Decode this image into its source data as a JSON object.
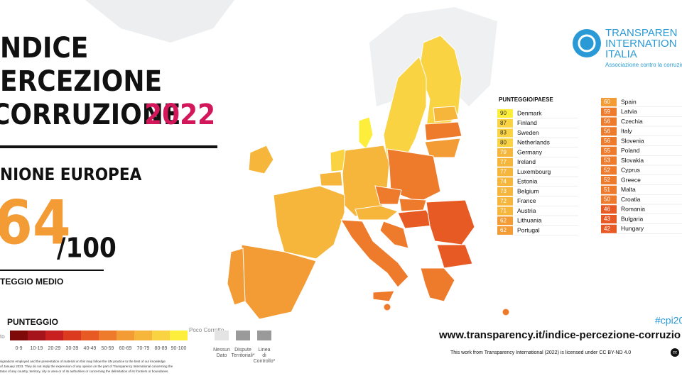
{
  "header": {
    "title_lines": [
      "NDICE",
      "ERCEZIONE",
      "CORRUZIONE"
    ],
    "year": "2022",
    "region": "NIONE EUROPEA",
    "score": "64",
    "max": "/100",
    "score_label": "TEGGIO MEDIO"
  },
  "logo": {
    "line1": "TRANSPAREN",
    "line2": "INTERNATION",
    "line3": "ITALIA",
    "tagline": "Associazione contro la corruzion"
  },
  "legend": {
    "title": "PUNTEGGIO",
    "low": "to",
    "high": "Poco Corrotto",
    "bins": [
      {
        "label": "0-9",
        "color": "#7f0a0a"
      },
      {
        "label": "10-19",
        "color": "#a5141a"
      },
      {
        "label": "20-29",
        "color": "#c82020"
      },
      {
        "label": "30-39",
        "color": "#dc3a1e"
      },
      {
        "label": "40-49",
        "color": "#e85a24"
      },
      {
        "label": "50-59",
        "color": "#ee7a2c"
      },
      {
        "label": "60-69",
        "color": "#f39b35"
      },
      {
        "label": "70-79",
        "color": "#f6b63c"
      },
      {
        "label": "80-89",
        "color": "#f9d342"
      },
      {
        "label": "90-100",
        "color": "#fcee3a"
      }
    ],
    "extras": [
      "Nessun Dato",
      "Dispute Territoriali*",
      "Linea di Controllo*"
    ]
  },
  "table": {
    "header": "PUNTEGGIO/PAESE",
    "columns": [
      [
        {
          "score": 90,
          "country": "Denmark"
        },
        {
          "score": 87,
          "country": "Finland"
        },
        {
          "score": 83,
          "country": "Sweden"
        },
        {
          "score": 80,
          "country": "Netherlands"
        },
        {
          "score": 79,
          "country": "Germany"
        },
        {
          "score": 77,
          "country": "Ireland"
        },
        {
          "score": 77,
          "country": "Luxembourg"
        },
        {
          "score": 74,
          "country": "Estonia"
        },
        {
          "score": 73,
          "country": "Belgium"
        },
        {
          "score": 72,
          "country": "France"
        },
        {
          "score": 71,
          "country": "Austria"
        },
        {
          "score": 62,
          "country": "Lithuania"
        },
        {
          "score": 62,
          "country": "Portugal"
        }
      ],
      [
        {
          "score": 60,
          "country": "Spain"
        },
        {
          "score": 59,
          "country": "Latvia"
        },
        {
          "score": 56,
          "country": "Czechia"
        },
        {
          "score": 56,
          "country": "Italy"
        },
        {
          "score": 56,
          "country": "Slovenia"
        },
        {
          "score": 55,
          "country": "Poland"
        },
        {
          "score": 53,
          "country": "Slovakia"
        },
        {
          "score": 52,
          "country": "Cyprus"
        },
        {
          "score": 52,
          "country": "Greece"
        },
        {
          "score": 51,
          "country": "Malta"
        },
        {
          "score": 50,
          "country": "Croatia"
        },
        {
          "score": 46,
          "country": "Romania"
        },
        {
          "score": 43,
          "country": "Bulgaria"
        },
        {
          "score": 42,
          "country": "Hungary"
        }
      ]
    ]
  },
  "footer": {
    "hashtag": "#cpi20",
    "url": "www.transparency.it/indice-percezione-corruzio",
    "license": "This work from Transparency International (2022) is licensed under CC BY-ND 4.0",
    "badge": "cc",
    "disclaimer": [
      "signations employed and the presentation of material on this map follow the UN practice to the best of our knowledge",
      "of January 2023. They do not imply the expression of any opinion on the part of Transparency International concerning the",
      "tatus of any country, territory, city or area or of its authorities or concerning the delimitation of its frontiers or boundaries."
    ]
  }
}
